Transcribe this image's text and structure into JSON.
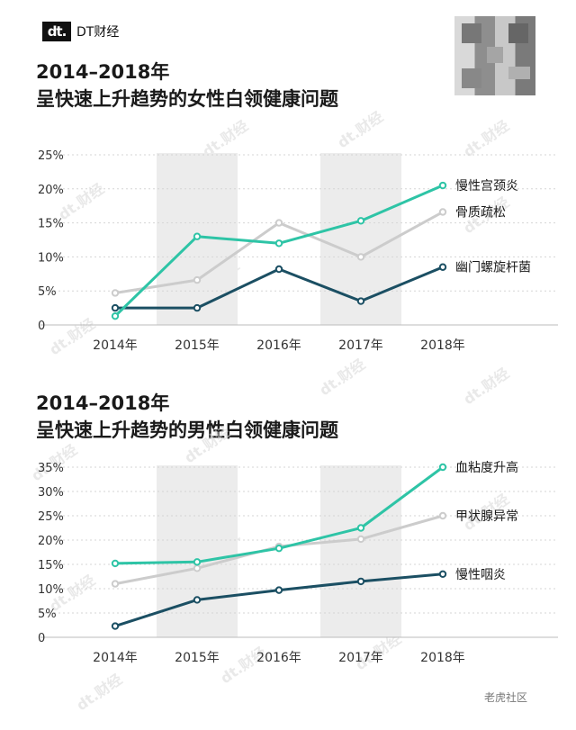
{
  "brand": {
    "mark": "dt.",
    "name": "DT财经"
  },
  "charts": [
    {
      "title_line1": "2014–2018年",
      "title_line2": "呈快速上升趋势的女性白领健康问题",
      "type": "line",
      "x": [
        "2014年",
        "2015年",
        "2016年",
        "2017年",
        "2018年"
      ],
      "y_ticks": [
        "25%",
        "20%",
        "15%",
        "10%",
        "5%",
        "0"
      ],
      "ylim": [
        0,
        25
      ],
      "series": [
        {
          "name": "慢性宫颈炎",
          "values": [
            1.3,
            13.0,
            12.0,
            15.3,
            20.5
          ],
          "color": "#2ec4a6"
        },
        {
          "name": "骨质疏松",
          "values": [
            4.7,
            6.6,
            15.0,
            10.0,
            16.6
          ],
          "color": "#cccccc"
        },
        {
          "name": "幽门螺旋杆菌",
          "values": [
            2.5,
            2.5,
            8.2,
            3.5,
            8.5
          ],
          "color": "#1b4f63"
        }
      ]
    },
    {
      "title_line1": "2014–2018年",
      "title_line2": "呈快速上升趋势的男性白领健康问题",
      "type": "line",
      "x": [
        "2014年",
        "2015年",
        "2016年",
        "2017年",
        "2018年"
      ],
      "y_ticks": [
        "35%",
        "30%",
        "25%",
        "20%",
        "15%",
        "10%",
        "5%",
        "0"
      ],
      "ylim": [
        0,
        35
      ],
      "series": [
        {
          "name": "血粘度升高",
          "values": [
            15.2,
            15.5,
            18.3,
            22.5,
            35.0
          ],
          "color": "#2ec4a6"
        },
        {
          "name": "甲状腺异常",
          "values": [
            11.0,
            14.2,
            18.7,
            20.2,
            25.0
          ],
          "color": "#cccccc"
        },
        {
          "name": "慢性咽炎",
          "values": [
            2.3,
            7.7,
            9.7,
            11.5,
            13.0
          ],
          "color": "#1b4f63"
        }
      ]
    }
  ],
  "watermark": "dt.财经",
  "footer": "老虎社区"
}
